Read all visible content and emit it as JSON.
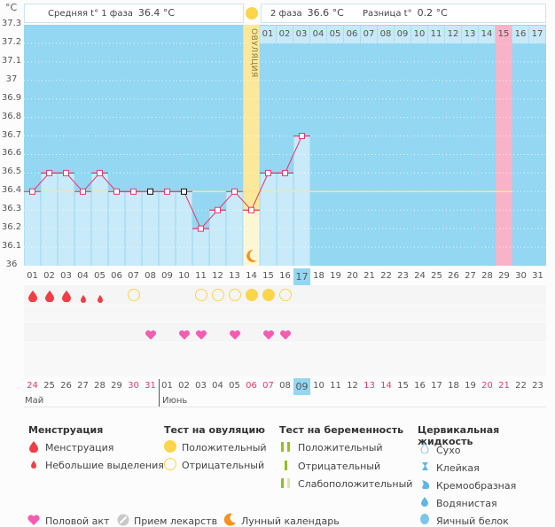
{
  "header": {
    "unit": "°C",
    "phase1_label": "Средняя t° 1 фаза",
    "phase1_value": "36.4 °C",
    "phase2_label": "2 фаза",
    "phase2_value": "36.6 °C",
    "diff_label": "Разница t°",
    "diff_value": "0.2 °C"
  },
  "ovulation_label": "ОВУЛЯЦИЯ",
  "chart_data": {
    "type": "line",
    "title": "",
    "xlabel": "День цикла",
    "ylabel": "°C",
    "ylim": [
      36.0,
      37.3
    ],
    "yticks": [
      "37.3",
      "37.2",
      "37.1",
      "37",
      "36.9",
      "36.8",
      "36.7",
      "36.6",
      "36.5",
      "36.4",
      "36.3",
      "36.2",
      "36.1",
      "36"
    ],
    "x": [
      "01",
      "02",
      "03",
      "04",
      "05",
      "06",
      "07",
      "08",
      "09",
      "10",
      "11",
      "12",
      "13",
      "14",
      "15",
      "16",
      "17",
      "18",
      "19",
      "20",
      "21",
      "22",
      "23",
      "24",
      "25",
      "26",
      "27",
      "28",
      "29",
      "30",
      "31"
    ],
    "series": [
      {
        "name": "Базальная температура",
        "values": [
          36.4,
          36.5,
          36.5,
          36.4,
          36.5,
          36.4,
          36.4,
          36.4,
          36.4,
          36.4,
          36.2,
          36.3,
          36.4,
          36.3,
          36.5,
          36.5,
          36.7
        ]
      }
    ],
    "coverline": 36.4,
    "ovulation_day": 14,
    "today_day": 17,
    "expected_period_day": 29,
    "marker_black_days": [
      8,
      10
    ],
    "post_ovulation_days": [
      "01",
      "02",
      "03",
      "04",
      "05",
      "06",
      "07",
      "08",
      "09",
      "10",
      "11",
      "12",
      "13",
      "14",
      "15",
      "16",
      "17"
    ],
    "highlight_post_day": "15"
  },
  "symptoms": {
    "menstruation": {
      "1": "heavy",
      "2": "heavy",
      "3": "heavy",
      "4": "light",
      "5": "light"
    },
    "ovulation_test": {
      "7": "negative",
      "11": "negative",
      "12": "negative",
      "13": "negative",
      "14": "positive",
      "15": "positive",
      "16": "negative"
    },
    "intercourse_days": [
      8,
      10,
      11,
      13,
      15,
      16
    ]
  },
  "calendar": {
    "dates": [
      "24",
      "25",
      "26",
      "27",
      "28",
      "29",
      "30",
      "31",
      "01",
      "02",
      "03",
      "04",
      "05",
      "06",
      "07",
      "08",
      "09",
      "10",
      "11",
      "12",
      "13",
      "14",
      "15",
      "16",
      "17",
      "18",
      "19",
      "20",
      "21",
      "22",
      "23"
    ],
    "red_indices": [
      0,
      6,
      7,
      13,
      14,
      20,
      21,
      27,
      28
    ],
    "today_index": 16,
    "months": [
      "Май",
      "Июнь"
    ]
  },
  "legend": {
    "menstruation": {
      "title": "Менструация",
      "items": [
        "Менструация",
        "Небольшие выделения"
      ]
    },
    "ovulation_test": {
      "title": "Тест на овуляцию",
      "items": [
        "Положительный",
        "Отрицательный"
      ]
    },
    "pregnancy_test": {
      "title": "Тест на беременность",
      "items": [
        "Положительный",
        "Отрицательный",
        "Слабоположительный"
      ]
    },
    "cervical": {
      "title": "Цервикальная жидкость",
      "items": [
        "Сухо",
        "Клейкая",
        "Кремообразная",
        "Водянистая",
        "Яичный белок"
      ]
    },
    "other": [
      "Половой акт",
      "Прием лекарств",
      "Лунный календарь"
    ]
  },
  "colors": {
    "plot_bg": "#93d7f2",
    "bar_fill": "#c8eaf9",
    "line": "#e8356b",
    "ovulation": "#fbe89a",
    "period": "#f9b3c8",
    "coverline": "#f7e98a",
    "blood": "#ef3e45",
    "test": "#fbd54a",
    "heart": "#f55bb1",
    "green": "#92c01f"
  }
}
